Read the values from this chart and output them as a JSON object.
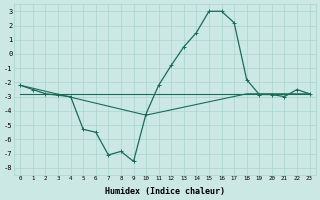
{
  "xlabel": "Humidex (Indice chaleur)",
  "xlim": [
    -0.5,
    23.5
  ],
  "ylim": [
    -8.5,
    3.5
  ],
  "yticks": [
    -8,
    -7,
    -6,
    -5,
    -4,
    -3,
    -2,
    -1,
    0,
    1,
    2,
    3
  ],
  "xticks": [
    0,
    1,
    2,
    3,
    4,
    5,
    6,
    7,
    8,
    9,
    10,
    11,
    12,
    13,
    14,
    15,
    16,
    17,
    18,
    19,
    20,
    21,
    22,
    23
  ],
  "line_color": "#1a6b5a",
  "bg_color": "#cce8e4",
  "grid_color": "#aad4ce",
  "line1_x": [
    0,
    1,
    2,
    3,
    4,
    5,
    6,
    7,
    8,
    9,
    10,
    11,
    12,
    13,
    14,
    15,
    16,
    17,
    18,
    19,
    20,
    21,
    22,
    23
  ],
  "line1_y": [
    -2.2,
    -2.5,
    -2.8,
    -2.9,
    -3.0,
    -5.3,
    -5.5,
    -7.1,
    -6.85,
    -7.55,
    -4.2,
    -2.2,
    -0.8,
    0.5,
    1.5,
    3.0,
    3.0,
    2.2,
    -1.8,
    -2.85,
    -2.85,
    -3.0,
    -2.5,
    -2.8
  ],
  "line2_x": [
    0,
    23
  ],
  "line2_y": [
    -2.8,
    -2.8
  ],
  "line3_x": [
    0,
    10,
    18,
    23
  ],
  "line3_y": [
    -2.2,
    -4.3,
    -2.8,
    -2.8
  ]
}
